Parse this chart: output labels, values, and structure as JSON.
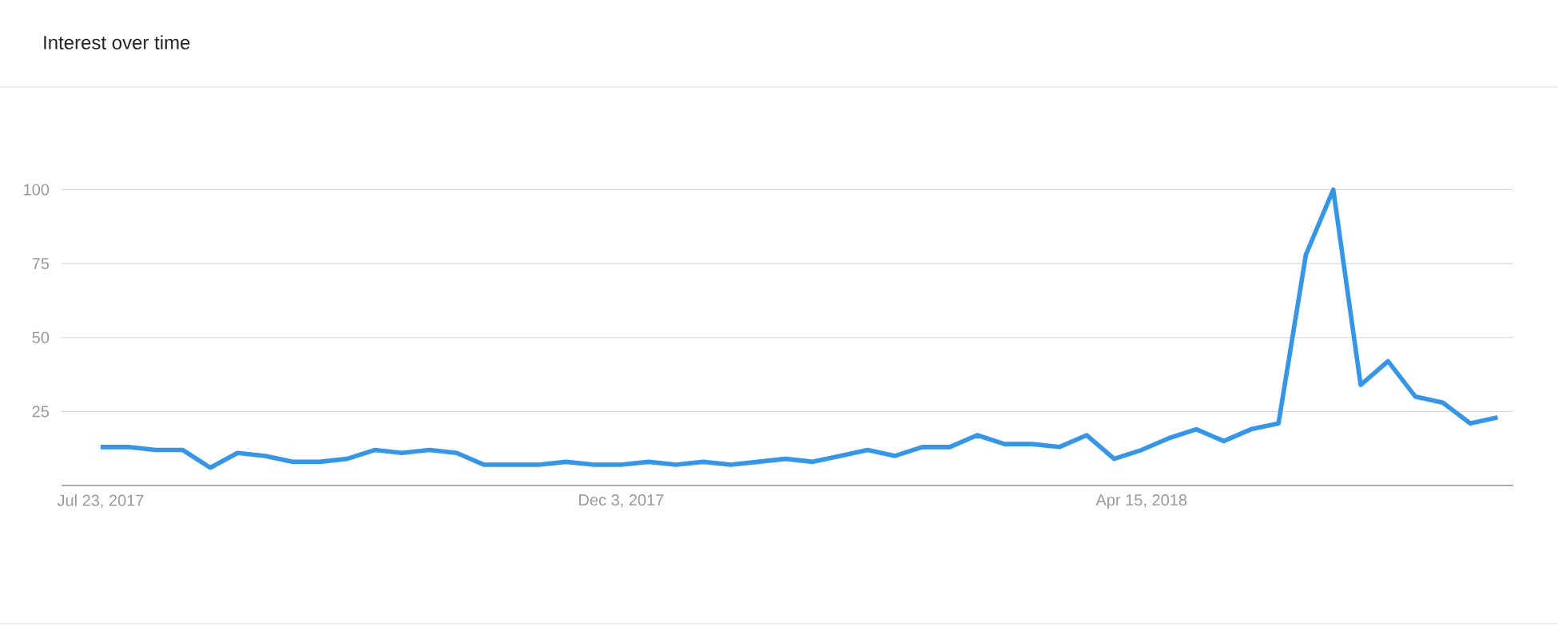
{
  "chart_data": {
    "type": "line",
    "title": "Interest over time",
    "x": [
      "2017-07-23",
      "2017-07-30",
      "2017-08-06",
      "2017-08-13",
      "2017-08-20",
      "2017-08-27",
      "2017-09-03",
      "2017-09-10",
      "2017-09-17",
      "2017-09-24",
      "2017-10-01",
      "2017-10-08",
      "2017-10-15",
      "2017-10-22",
      "2017-10-29",
      "2017-11-05",
      "2017-11-12",
      "2017-11-19",
      "2017-11-26",
      "2017-12-03",
      "2017-12-10",
      "2017-12-17",
      "2017-12-24",
      "2017-12-31",
      "2018-01-07",
      "2018-01-14",
      "2018-01-21",
      "2018-01-28",
      "2018-02-04",
      "2018-02-11",
      "2018-02-18",
      "2018-02-25",
      "2018-03-04",
      "2018-03-11",
      "2018-03-18",
      "2018-03-25",
      "2018-04-01",
      "2018-04-08",
      "2018-04-15",
      "2018-04-22",
      "2018-04-29",
      "2018-05-06",
      "2018-05-13",
      "2018-05-20",
      "2018-05-27",
      "2018-06-03",
      "2018-06-10",
      "2018-06-17",
      "2018-06-24",
      "2018-07-01",
      "2018-07-08",
      "2018-07-15"
    ],
    "values": [
      13,
      13,
      12,
      12,
      6,
      11,
      10,
      8,
      8,
      9,
      12,
      11,
      12,
      11,
      7,
      7,
      7,
      8,
      7,
      7,
      8,
      7,
      8,
      7,
      8,
      9,
      8,
      10,
      12,
      10,
      13,
      13,
      17,
      14,
      14,
      13,
      17,
      9,
      12,
      16,
      19,
      15,
      19,
      21,
      78,
      100,
      34,
      42,
      30,
      28,
      21,
      23
    ],
    "color": "#3296ec",
    "xlim": [
      "2017-07-13",
      "2018-07-19"
    ],
    "xticks": [
      {
        "value": "2017-07-23",
        "label": "Jul 23, 2017"
      },
      {
        "value": "2017-12-03",
        "label": "Dec 3, 2017"
      },
      {
        "value": "2018-04-15",
        "label": "Apr 15, 2018"
      }
    ],
    "ylim": [
      0,
      100
    ],
    "yticks": [
      25,
      50,
      75,
      100
    ],
    "grid": "y",
    "marker": "none"
  }
}
